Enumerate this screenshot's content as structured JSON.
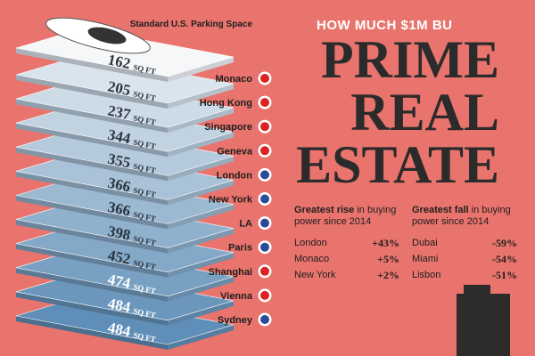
{
  "header": {
    "kicker": "HOW MUCH $1M BU",
    "title": [
      "PRIME",
      "REAL",
      "ESTATE"
    ]
  },
  "unit": "SQ FT",
  "parking": {
    "label": "Standard U.S. Parking Space",
    "area": 162
  },
  "cities": [
    {
      "name": "Monaco",
      "area": 205
    },
    {
      "name": "Hong Kong",
      "area": 237
    },
    {
      "name": "Singapore",
      "area": 344
    },
    {
      "name": "Geneva",
      "area": 355
    },
    {
      "name": "London",
      "area": 366
    },
    {
      "name": "New York",
      "area": 366
    },
    {
      "name": "LA",
      "area": 398
    },
    {
      "name": "Paris",
      "area": 452
    },
    {
      "name": "Shanghai",
      "area": 474
    },
    {
      "name": "Vienna",
      "area": 484
    },
    {
      "name": "Sydney",
      "area": 484
    }
  ],
  "rise": {
    "heading_bold": "Greatest rise",
    "heading_rest": "in buying power since 2014",
    "rows": [
      [
        "London",
        "+43%"
      ],
      [
        "Monaco",
        "+5%"
      ],
      [
        "New York",
        "+2%"
      ]
    ]
  },
  "fall": {
    "heading_bold": "Greatest fall",
    "heading_rest": "in buying power since 2014",
    "rows": [
      [
        "Dubai",
        "-59%"
      ],
      [
        "Miami",
        "-54%"
      ],
      [
        "Lisbon",
        "-51%"
      ]
    ]
  }
}
